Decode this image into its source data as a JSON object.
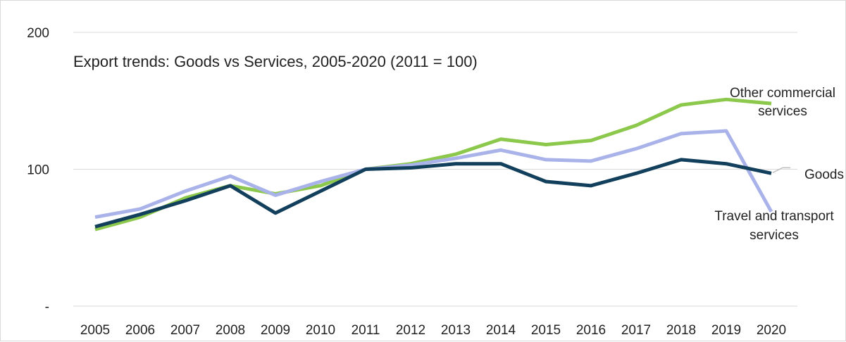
{
  "chart_data": {
    "type": "line",
    "title": "Export trends: Goods vs Services, 2005-2020 (2011 = 100)",
    "xlabel": "",
    "ylabel": "",
    "ylim": [
      0,
      200
    ],
    "yticks": [
      {
        "value": 200,
        "label": "200"
      },
      {
        "value": 100,
        "label": "100"
      },
      {
        "value": 0,
        "label": "-"
      }
    ],
    "grid": true,
    "legend": "inline labels at line ends",
    "categories": [
      "2005",
      "2006",
      "2007",
      "2008",
      "2009",
      "2010",
      "2011",
      "2012",
      "2013",
      "2014",
      "2015",
      "2016",
      "2017",
      "2018",
      "2019",
      "2020"
    ],
    "series": [
      {
        "name": "Other commercial services",
        "label_lines": [
          "Other commercial",
          "services"
        ],
        "color": "#8cc84b",
        "values": [
          56,
          65,
          79,
          88,
          82,
          88,
          100,
          104,
          111,
          122,
          118,
          121,
          132,
          147,
          151,
          148
        ]
      },
      {
        "name": "Travel and transport services",
        "label_lines": [
          "Travel and transport",
          "services"
        ],
        "color": "#a9b3ea",
        "values": [
          65,
          71,
          84,
          95,
          81,
          91,
          100,
          103,
          108,
          114,
          107,
          106,
          115,
          126,
          128,
          69
        ]
      },
      {
        "name": "Goods",
        "label_lines": [
          "Goods"
        ],
        "color": "#123f5c",
        "values": [
          58,
          67,
          77,
          88,
          68,
          84,
          100,
          101,
          104,
          104,
          91,
          88,
          97,
          107,
          104,
          97
        ]
      }
    ]
  }
}
